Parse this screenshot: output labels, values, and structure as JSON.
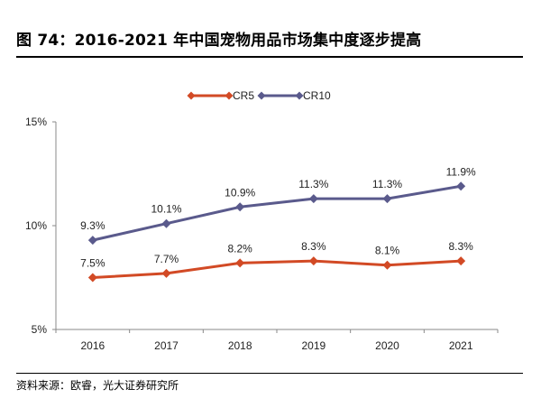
{
  "header": {
    "title": "图 74：2016-2021 年中国宠物用品市场集中度逐步提高"
  },
  "footer": {
    "source": "资料来源：欧睿，光大证券研究所"
  },
  "chart_data": {
    "type": "line",
    "categories": [
      "2016",
      "2017",
      "2018",
      "2019",
      "2020",
      "2021"
    ],
    "series": [
      {
        "name": "CR5",
        "values": [
          7.5,
          7.7,
          8.2,
          8.3,
          8.1,
          8.3
        ],
        "labels": [
          "7.5%",
          "7.7%",
          "8.2%",
          "8.3%",
          "8.1%",
          "8.3%"
        ],
        "color": "#D24A25",
        "marker": "diamond"
      },
      {
        "name": "CR10",
        "values": [
          9.3,
          10.1,
          10.9,
          11.3,
          11.3,
          11.9
        ],
        "labels": [
          "9.3%",
          "10.1%",
          "10.9%",
          "11.3%",
          "11.3%",
          "11.9%"
        ],
        "color": "#5A5A8C",
        "marker": "diamond"
      }
    ],
    "ylim": [
      5,
      15
    ],
    "yticks": [
      5,
      10,
      15
    ],
    "ytick_labels": [
      "5%",
      "10%",
      "15%"
    ],
    "legend_position": "top-center",
    "grid": false
  }
}
